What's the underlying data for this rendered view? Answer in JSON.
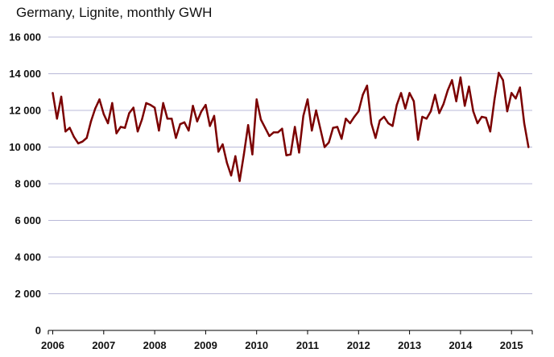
{
  "chart_data": {
    "type": "line",
    "title": "Germany, Lignite, monthly GWH",
    "xlabel": "",
    "ylabel": "",
    "ylim": [
      0,
      16000
    ],
    "y_ticks": [
      "0",
      "2 000",
      "4 000",
      "6 000",
      "8 000",
      "10 000",
      "12 000",
      "14 000",
      "16 000"
    ],
    "y_tick_values": [
      0,
      2000,
      4000,
      6000,
      8000,
      10000,
      12000,
      14000,
      16000
    ],
    "x_ticks": [
      "2006",
      "2007",
      "2008",
      "2009",
      "2010",
      "2011",
      "2012",
      "2013",
      "2014",
      "2015"
    ],
    "grid": "horizontal",
    "line_color": "#7b0000",
    "grid_color": "#b8b8d8",
    "start": "2006-01",
    "series": [
      {
        "values": [
          12950,
          11550,
          12750,
          10850,
          11050,
          10550,
          10200,
          10300,
          10500,
          11400,
          12100,
          12600,
          11800,
          11300,
          12400,
          10750,
          11100,
          11050,
          11850,
          12150,
          10850,
          11500,
          12400,
          12300,
          12150,
          10900,
          12400,
          11550,
          11550,
          10500,
          11250,
          11350,
          10900,
          12250,
          11400,
          11950,
          12300,
          11150,
          11700,
          9750,
          10150,
          9150,
          8450,
          9500,
          8150,
          9600,
          11200,
          9600,
          12600,
          11500,
          11050,
          10600,
          10800,
          10800,
          11000,
          9550,
          9600,
          11100,
          9700,
          11700,
          12600,
          10900,
          12000,
          11000,
          10000,
          10250,
          11050,
          11100,
          10450,
          11550,
          11300,
          11650,
          11950,
          12850,
          13350,
          11300,
          10500,
          11450,
          11650,
          11300,
          11150,
          12300,
          12950,
          12100,
          12950,
          12500,
          10400,
          11650,
          11550,
          11950,
          12850,
          11850,
          12350,
          13100,
          13650,
          12500,
          13800,
          12250,
          13300,
          11950,
          11300,
          11650,
          11600,
          10850,
          12600,
          14050,
          13650,
          11950,
          12950,
          12650,
          13250,
          11300,
          10000
        ]
      }
    ]
  }
}
